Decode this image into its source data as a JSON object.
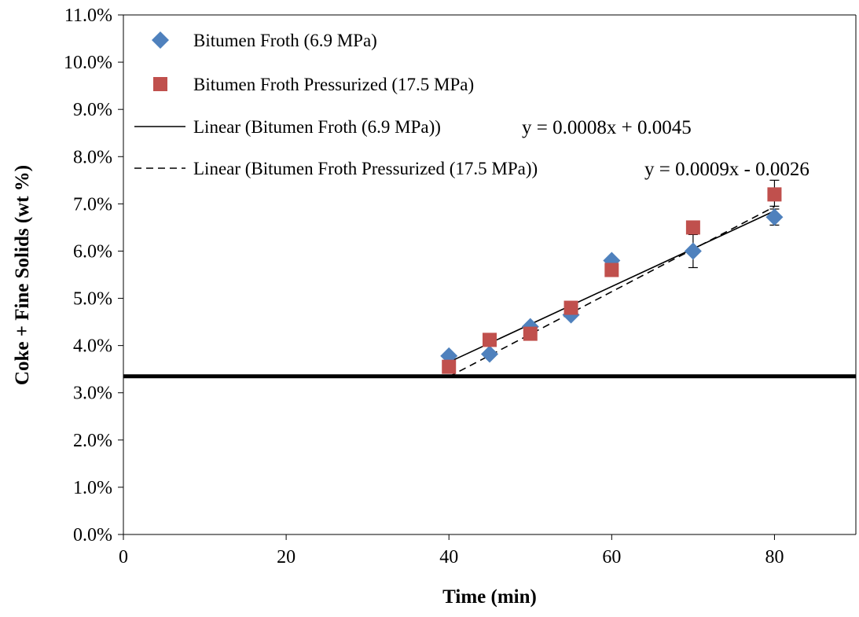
{
  "chart_data": {
    "type": "scatter",
    "xlabel": "Time (min)",
    "ylabel": "Coke + Fine Solids (wt %)",
    "xlim": [
      0,
      90
    ],
    "ylim": [
      0.0,
      0.11
    ],
    "x_ticks": [
      0,
      20,
      40,
      60,
      80
    ],
    "x_tick_labels": [
      "0",
      "20",
      "40",
      "60",
      "80"
    ],
    "y_ticks": [
      0.0,
      0.01,
      0.02,
      0.03,
      0.04,
      0.05,
      0.06,
      0.07,
      0.08,
      0.09,
      0.1,
      0.11
    ],
    "y_tick_labels": [
      "0.0%",
      "1.0%",
      "2.0%",
      "3.0%",
      "4.0%",
      "5.0%",
      "6.0%",
      "7.0%",
      "8.0%",
      "9.0%",
      "10.0%",
      "11.0%"
    ],
    "grid": false,
    "legend_position": "top-left",
    "baseline": {
      "y": 0.0335,
      "color": "#000000"
    },
    "series": [
      {
        "name": "Bitumen Froth (6.9 MPa)",
        "marker": "diamond",
        "color": "#4F81BD",
        "x": [
          40,
          45,
          50,
          55,
          60,
          70,
          80
        ],
        "y": [
          0.0378,
          0.0382,
          0.044,
          0.0465,
          0.058,
          0.06,
          0.0672
        ],
        "error_bars": [
          {
            "x": 70,
            "low": 0.0565,
            "high": 0.0635
          },
          {
            "x": 80,
            "low": 0.0655,
            "high": 0.0689
          }
        ]
      },
      {
        "name": "Bitumen Froth Pressurized (17.5 MPa)",
        "marker": "square",
        "color": "#C0504D",
        "x": [
          40,
          45,
          50,
          55,
          60,
          70,
          80
        ],
        "y": [
          0.0355,
          0.0412,
          0.0425,
          0.048,
          0.056,
          0.065,
          0.072
        ],
        "error_bars": [
          {
            "x": 80,
            "low": 0.0695,
            "high": 0.075
          }
        ]
      }
    ],
    "trendlines": [
      {
        "name": "Linear (Bitumen Froth (6.9 MPa))",
        "style": "solid",
        "slope": 0.0008,
        "intercept": 0.0045,
        "x_range": [
          40,
          80
        ],
        "equation": "y = 0.0008x + 0.0045"
      },
      {
        "name": "Linear (Bitumen Froth Pressurized (17.5 MPa))",
        "style": "dashed",
        "slope": 0.0009,
        "intercept": -0.0026,
        "x_range": [
          40,
          80
        ],
        "equation": "y = 0.0009x - 0.0026"
      }
    ]
  }
}
